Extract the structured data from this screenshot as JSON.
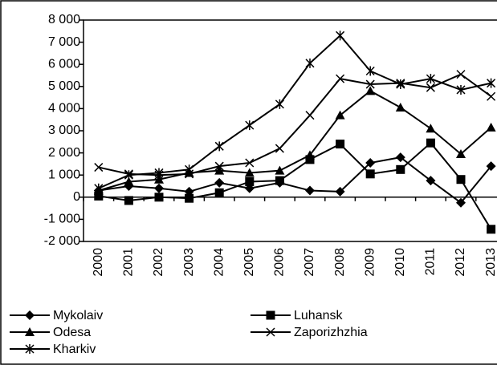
{
  "chart_data": {
    "type": "line",
    "categories": [
      "2000",
      "2001",
      "2002",
      "2003",
      "2004",
      "2005",
      "2006",
      "2007",
      "2008",
      "2009",
      "2010",
      "2011",
      "2012",
      "2013"
    ],
    "series": [
      {
        "name": "Mykolaiv",
        "color": "#000000",
        "marker": "diamond",
        "values": [
          300,
          500,
          400,
          250,
          650,
          400,
          650,
          300,
          250,
          1550,
          1800,
          750,
          -250,
          1400
        ]
      },
      {
        "name": "Luhansk",
        "color": "#000000",
        "marker": "square",
        "values": [
          50,
          -150,
          0,
          -50,
          200,
          700,
          750,
          1700,
          2400,
          1050,
          1250,
          2450,
          800,
          -1450
        ]
      },
      {
        "name": "Odesa",
        "color": "#000000",
        "marker": "triangle",
        "values": [
          300,
          700,
          800,
          1100,
          1200,
          1100,
          1200,
          1900,
          3700,
          4800,
          4050,
          3100,
          1950,
          3150
        ]
      },
      {
        "name": "Zaporizhzhia",
        "color": "#000000",
        "marker": "x",
        "values": [
          1350,
          1050,
          1000,
          1050,
          1400,
          1550,
          2200,
          3700,
          5350,
          5100,
          5150,
          4950,
          5550,
          4550
        ]
      },
      {
        "name": "Kharkiv",
        "color": "#000000",
        "marker": "asterisk",
        "values": [
          400,
          1000,
          1100,
          1250,
          2300,
          3250,
          4200,
          6050,
          7300,
          5700,
          5100,
          5350,
          4850,
          5150
        ]
      }
    ],
    "ylim": [
      -2000,
      8000
    ],
    "yticks": [
      {
        "value": -2000,
        "label": "-2 000"
      },
      {
        "value": -1000,
        "label": "-1 000"
      },
      0,
      {
        "value": 1000,
        "label": "1 000"
      },
      {
        "value": 2000,
        "label": "2 000"
      },
      {
        "value": 3000,
        "label": "3 000"
      },
      {
        "value": 4000,
        "label": "4 000"
      },
      {
        "value": 5000,
        "label": "5 000"
      },
      {
        "value": 6000,
        "label": "6 000"
      },
      {
        "value": 7000,
        "label": "7 000"
      },
      {
        "value": 8000,
        "label": "8 000"
      }
    ],
    "grid": false
  }
}
